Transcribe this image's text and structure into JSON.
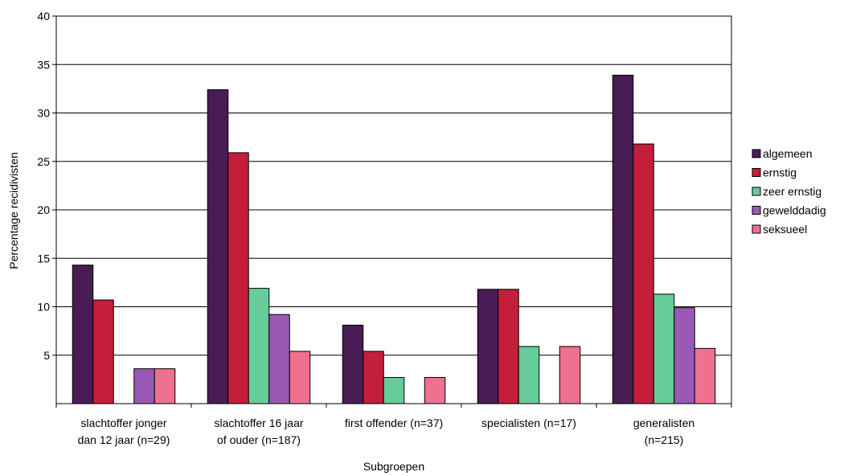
{
  "chart_data": {
    "type": "bar",
    "title": "",
    "xlabel": "Subgroepen",
    "ylabel": "Percentage recidivisten",
    "ylim": [
      0,
      40
    ],
    "yticks": [
      "5",
      "10",
      "15",
      "20",
      "25",
      "30",
      "35",
      "40"
    ],
    "grid": true,
    "legend_position": "right",
    "categories": [
      [
        "slachtoffer jonger",
        "dan 12 jaar (n=29)"
      ],
      [
        "slachtoffer 16 jaar",
        "of ouder (n=187)"
      ],
      [
        "first offender (n=37)"
      ],
      [
        "specialisten (n=17)"
      ],
      [
        "generalisten",
        "(n=215)"
      ]
    ],
    "series": [
      {
        "name": "algemeen",
        "color": "#4a1c55",
        "values": [
          14.3,
          32.4,
          8.1,
          11.8,
          33.9
        ]
      },
      {
        "name": "ernstig",
        "color": "#c41e3a",
        "values": [
          10.7,
          25.9,
          5.4,
          11.8,
          26.8
        ]
      },
      {
        "name": "zeer ernstig",
        "color": "#66cc99",
        "values": [
          null,
          11.9,
          2.7,
          5.9,
          11.3
        ]
      },
      {
        "name": "gewelddadig",
        "color": "#9b59b6",
        "values": [
          3.6,
          9.2,
          null,
          null,
          9.9
        ]
      },
      {
        "name": "seksueel",
        "color": "#f07090",
        "values": [
          3.6,
          5.4,
          2.7,
          5.9,
          5.7
        ]
      }
    ]
  }
}
